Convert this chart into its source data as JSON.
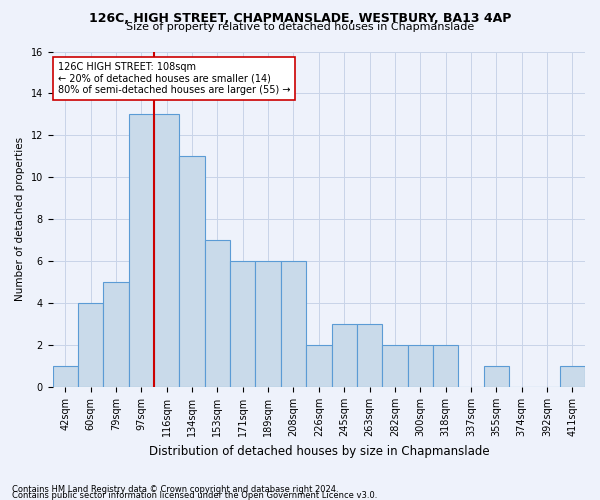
{
  "title": "126C, HIGH STREET, CHAPMANSLADE, WESTBURY, BA13 4AP",
  "subtitle": "Size of property relative to detached houses in Chapmanslade",
  "xlabel": "Distribution of detached houses by size in Chapmanslade",
  "ylabel": "Number of detached properties",
  "categories": [
    "42sqm",
    "60sqm",
    "79sqm",
    "97sqm",
    "116sqm",
    "134sqm",
    "153sqm",
    "171sqm",
    "189sqm",
    "208sqm",
    "226sqm",
    "245sqm",
    "263sqm",
    "282sqm",
    "300sqm",
    "318sqm",
    "337sqm",
    "355sqm",
    "374sqm",
    "392sqm",
    "411sqm"
  ],
  "values": [
    1,
    4,
    5,
    13,
    13,
    11,
    7,
    6,
    6,
    6,
    2,
    3,
    3,
    2,
    2,
    2,
    0,
    1,
    0,
    0,
    1
  ],
  "bar_color": "#c9daea",
  "bar_edge_color": "#5b9bd5",
  "reference_line_x": 3.5,
  "reference_line_color": "#cc0000",
  "annotation_text": "126C HIGH STREET: 108sqm\n← 20% of detached houses are smaller (14)\n80% of semi-detached houses are larger (55) →",
  "annotation_box_facecolor": "#ffffff",
  "annotation_box_edgecolor": "#cc0000",
  "ylim": [
    0,
    16
  ],
  "yticks": [
    0,
    2,
    4,
    6,
    8,
    10,
    12,
    14,
    16
  ],
  "footer1": "Contains HM Land Registry data © Crown copyright and database right 2024.",
  "footer2": "Contains public sector information licensed under the Open Government Licence v3.0.",
  "grid_color": "#c8d4e8",
  "background_color": "#eef2fb",
  "title_fontsize": 9,
  "subtitle_fontsize": 8,
  "ylabel_fontsize": 7.5,
  "xlabel_fontsize": 8.5,
  "tick_fontsize": 7,
  "footer_fontsize": 6,
  "annot_fontsize": 7
}
